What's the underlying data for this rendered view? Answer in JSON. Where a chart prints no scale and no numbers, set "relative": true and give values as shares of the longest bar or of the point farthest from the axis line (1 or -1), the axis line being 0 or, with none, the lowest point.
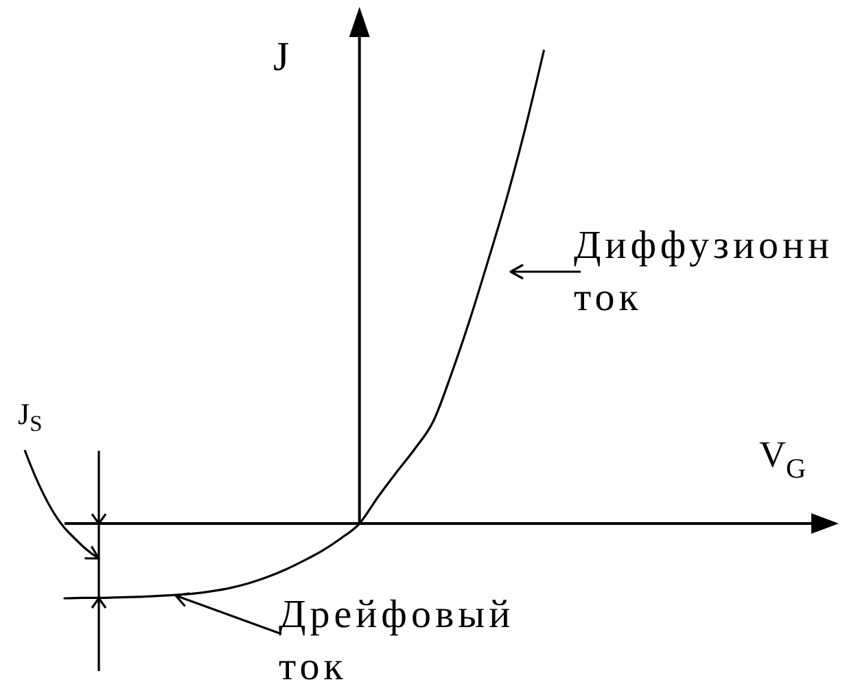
{
  "chart_data": {
    "type": "line",
    "relative": true,
    "xlabel": "V$_{G}$",
    "ylabel": "J",
    "categories": [
      null,
      null,
      null,
      null,
      null,
      null,
      null,
      null,
      null,
      null,
      null,
      null,
      null,
      null,
      null,
      null,
      null,
      null,
      null,
      null,
      null,
      null,
      null,
      null,
      null,
      null,
      null,
      null,
      null,
      null,
      null,
      null,
      null,
      null,
      null,
      null,
      null,
      null,
      null,
      null,
      null,
      null,
      null
    ],
    "series": [
      {
        "color": "#000000",
        "values": [
          -0.158,
          -0.157,
          -0.157,
          -0.156,
          -0.155,
          -0.153,
          -0.151,
          -0.148,
          -0.143,
          -0.136,
          -0.126,
          -0.113,
          -0.097,
          -0.078,
          -0.057,
          -0.031,
          0,
          0.056,
          0.108,
          0.158,
          0.216,
          0.318,
          0.433,
          0.559,
          0.69,
          0.837,
          1,
          null,
          null,
          null,
          null,
          null,
          null,
          null,
          null,
          null,
          null,
          null,
          null,
          null,
          null,
          null,
          null
        ]
      }
    ],
    "annotations": [
      "J$_{S}$",
      "Дрейфовый ток",
      "Диффузионн ток"
    ]
  }
}
